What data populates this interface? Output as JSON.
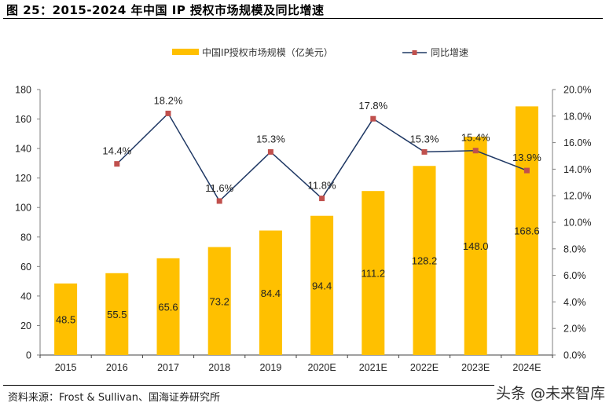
{
  "title": "图 25：2015-2024 年中国 IP 授权市场规模及同比增速",
  "source": "资料来源：Frost & Sullivan、国海证券研究所",
  "watermark": "头条 @未来智库",
  "colors": {
    "bar": "#FFC000",
    "line": "#1F3864",
    "marker": "#C0504D",
    "axis": "#7F7F7F"
  },
  "chart_data": {
    "type": "bar",
    "title": "2015-2024 年中国 IP 授权市场规模及同比增速",
    "categories": [
      "2015",
      "2016",
      "2017",
      "2018",
      "2019",
      "2020E",
      "2021E",
      "2022E",
      "2023E",
      "2024E"
    ],
    "series": [
      {
        "name": "中国IP授权市场规模（亿美元）",
        "type": "bar",
        "axis": "left",
        "values": [
          48.5,
          55.5,
          65.6,
          73.2,
          84.4,
          94.4,
          111.2,
          128.2,
          148.0,
          168.6
        ],
        "labels": [
          "48.5",
          "55.5",
          "65.6",
          "73.2",
          "84.4",
          "94.4",
          "111.2",
          "128.2",
          "148.0",
          "168.6"
        ]
      },
      {
        "name": "同比增速",
        "type": "line",
        "axis": "right",
        "values": [
          null,
          14.4,
          18.2,
          11.6,
          15.3,
          11.8,
          17.8,
          15.3,
          15.4,
          13.9
        ],
        "labels": [
          null,
          "14.4%",
          "18.2%",
          "11.6%",
          "15.3%",
          "11.8%",
          "17.8%",
          "15.3%",
          "15.4%",
          "13.9%"
        ]
      }
    ],
    "y_left": {
      "range": [
        0,
        180
      ],
      "ticks": [
        "0",
        "20",
        "40",
        "60",
        "80",
        "100",
        "120",
        "140",
        "160",
        "180"
      ]
    },
    "y_right": {
      "range": [
        0,
        20
      ],
      "ticks": [
        "0.0%",
        "2.0%",
        "4.0%",
        "6.0%",
        "8.0%",
        "10.0%",
        "12.0%",
        "14.0%",
        "16.0%",
        "18.0%",
        "20.0%"
      ]
    },
    "xlabel": "",
    "ylabel": "",
    "grid": false,
    "legend": "top-center"
  }
}
